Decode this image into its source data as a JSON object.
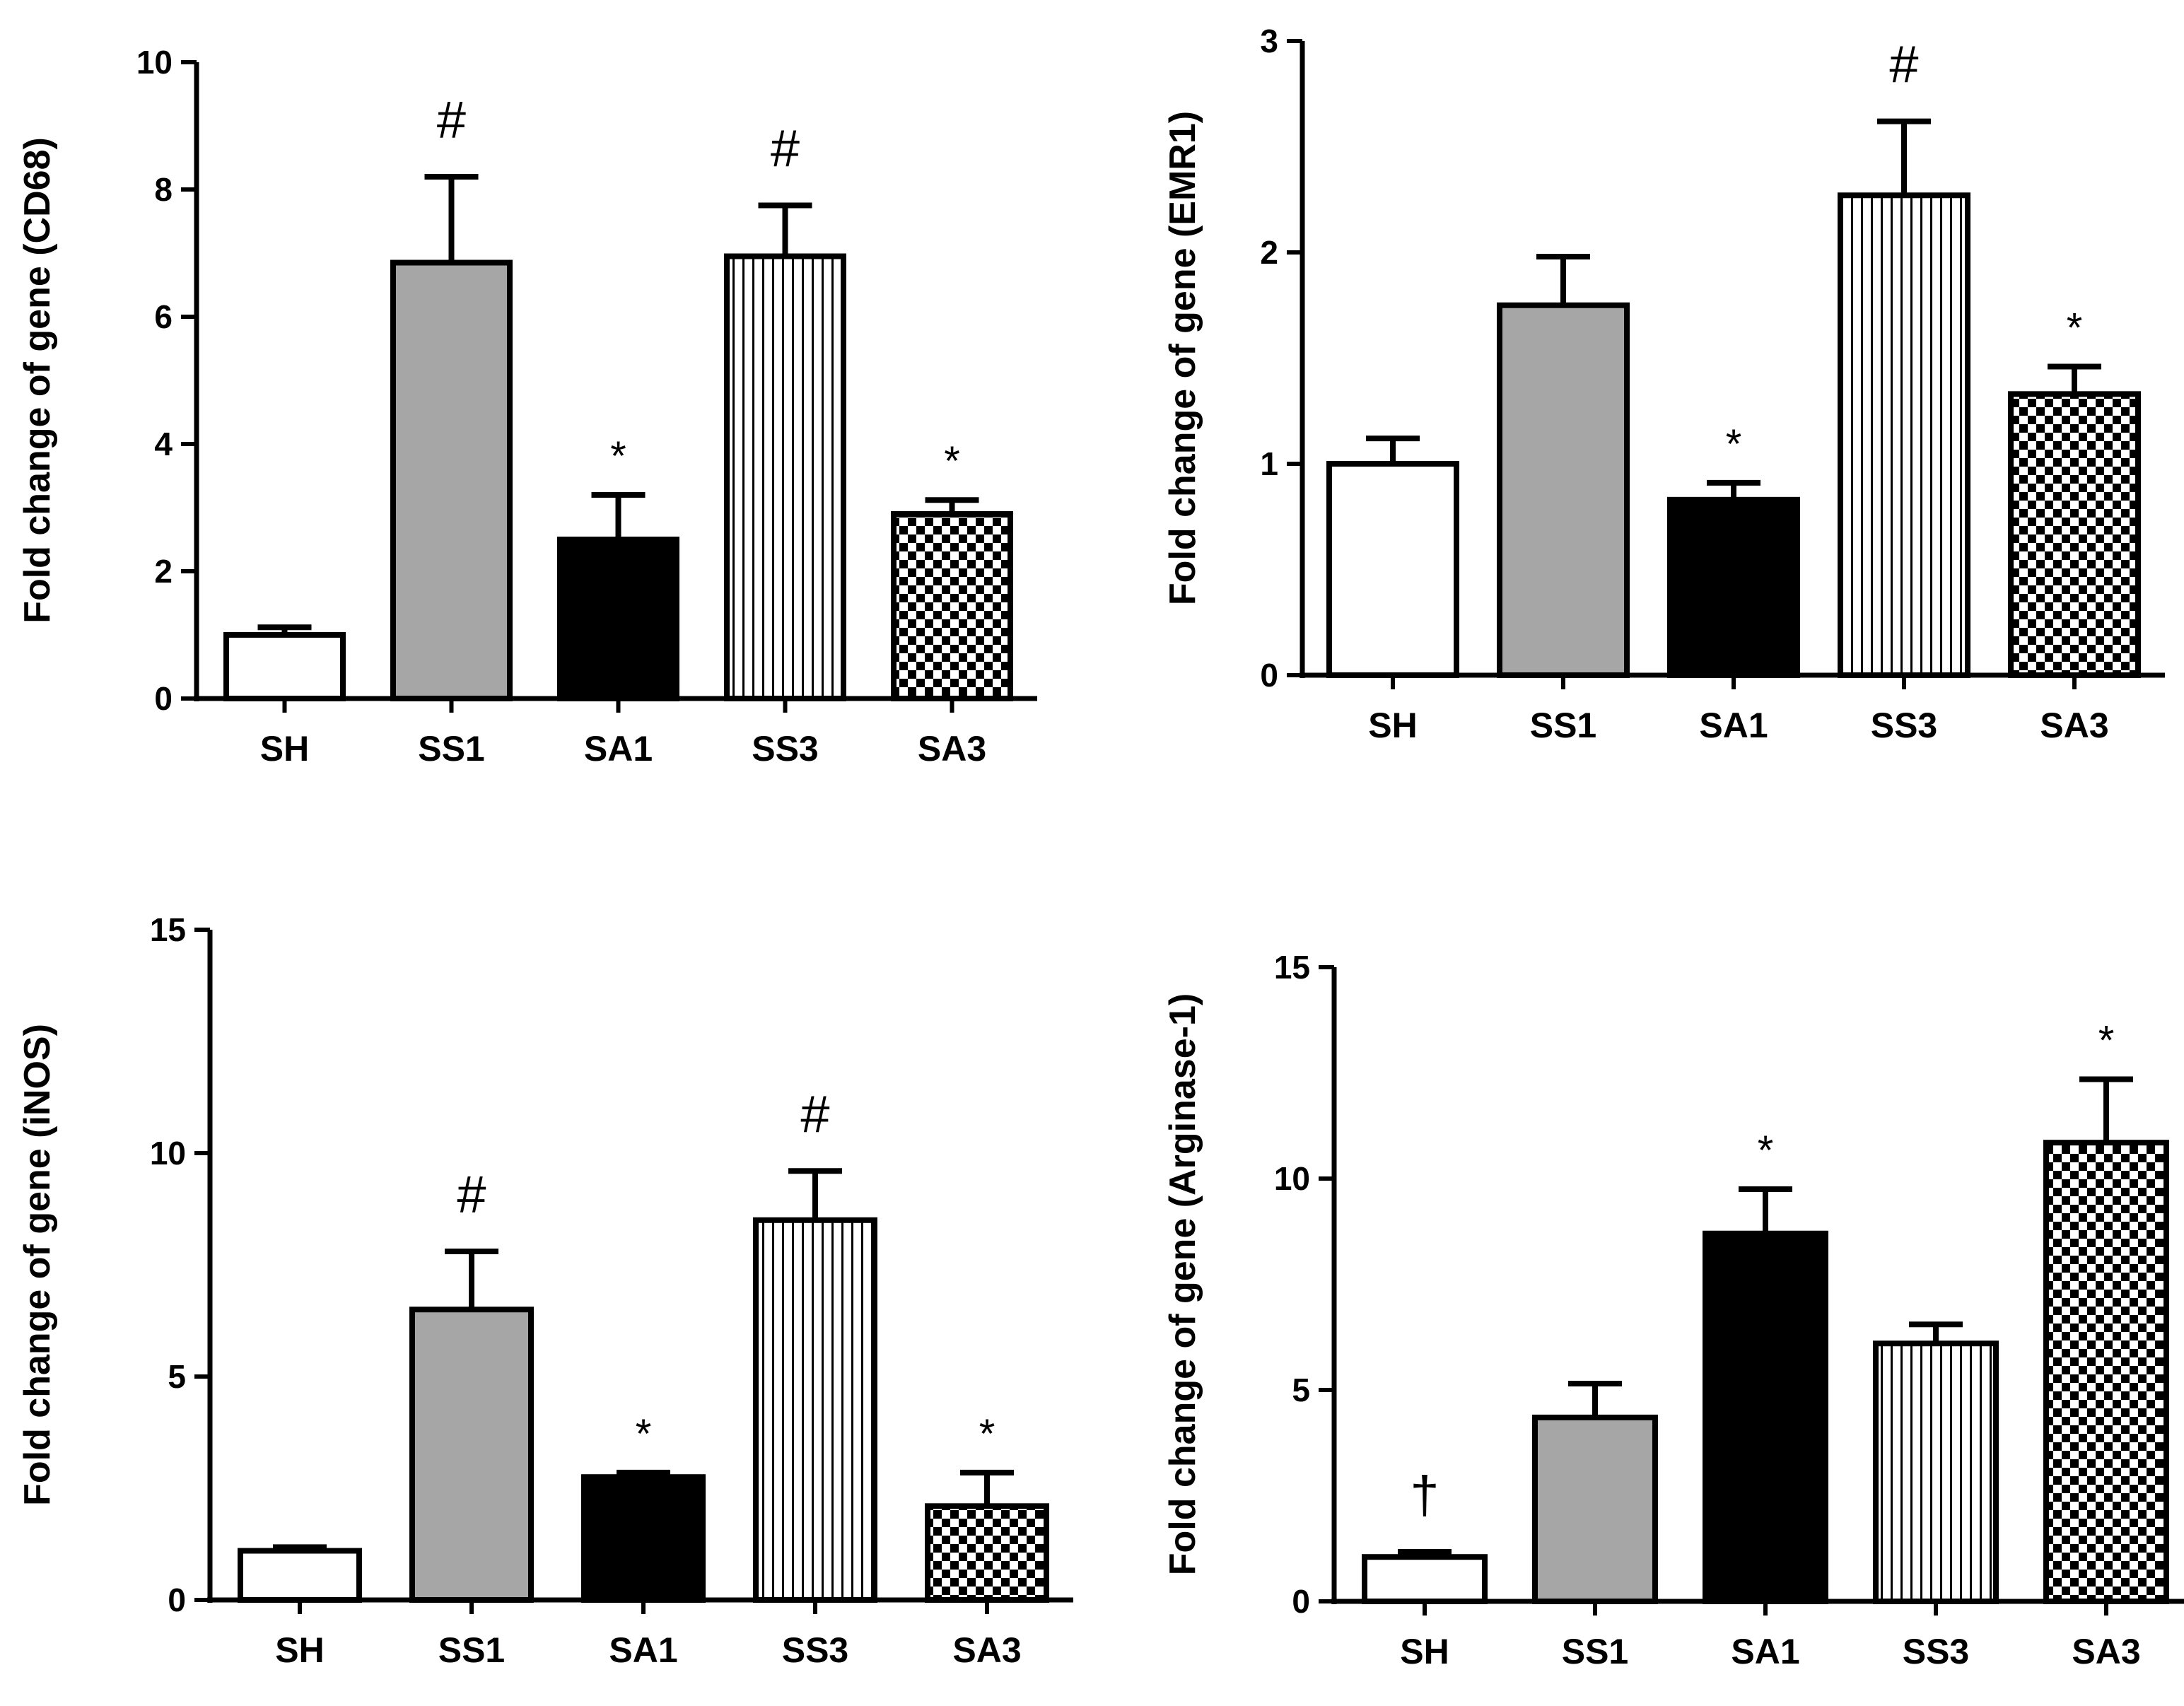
{
  "chart_data": [
    {
      "type": "bar",
      "categories": [
        "SH",
        "SS1",
        "SA1",
        "SS3",
        "SA3"
      ],
      "values": [
        1.0,
        6.85,
        2.5,
        6.95,
        2.9
      ],
      "errors": [
        0.12,
        1.35,
        0.7,
        0.8,
        0.22
      ],
      "annotations": [
        "",
        "#",
        "*",
        "#",
        "*"
      ],
      "ylabel": "Fold change of gene (CD68)",
      "ylim": [
        0,
        10
      ],
      "yticks": [
        0,
        2,
        4,
        6,
        8,
        10
      ],
      "ytick_labels": [
        "0",
        "2",
        "4",
        "6",
        "8",
        "10"
      ]
    },
    {
      "type": "bar",
      "categories": [
        "SH",
        "SS1",
        "SA1",
        "SS3",
        "SA3"
      ],
      "values": [
        1.0,
        1.75,
        0.83,
        2.27,
        1.33
      ],
      "errors": [
        0.12,
        0.23,
        0.08,
        0.35,
        0.13
      ],
      "annotations": [
        "",
        "",
        "*",
        "#",
        "*"
      ],
      "ylabel": "Fold change of gene (EMR1)",
      "ylim": [
        0,
        3
      ],
      "yticks": [
        0,
        1,
        2,
        3
      ],
      "ytick_labels": [
        "0",
        "1",
        "2",
        "3"
      ]
    },
    {
      "type": "bar",
      "categories": [
        "SH",
        "SS1",
        "SA1",
        "SS3",
        "SA3"
      ],
      "values": [
        1.1,
        6.5,
        2.75,
        8.5,
        2.1
      ],
      "errors": [
        0.08,
        1.3,
        0.1,
        1.1,
        0.75
      ],
      "annotations": [
        "",
        "#",
        "*",
        "#",
        "*"
      ],
      "ylabel": "Fold change of gene (iNOS)",
      "ylim": [
        0,
        15
      ],
      "yticks": [
        0,
        5,
        10,
        15
      ],
      "ytick_labels": [
        "0",
        "5",
        "10",
        "15"
      ]
    },
    {
      "type": "bar",
      "categories": [
        "SH",
        "SS1",
        "SA1",
        "SS3",
        "SA3"
      ],
      "values": [
        1.05,
        4.35,
        8.7,
        6.1,
        10.85
      ],
      "errors": [
        0.12,
        0.8,
        1.05,
        0.45,
        1.5
      ],
      "annotations": [
        "†",
        "",
        "*",
        "",
        "*"
      ],
      "ylabel": "Fold change of gene (Arginase-1)",
      "ylim": [
        0,
        15
      ],
      "yticks": [
        0,
        5,
        10,
        15
      ],
      "ytick_labels": [
        "0",
        "5",
        "10",
        "15"
      ]
    }
  ],
  "bar_styles": [
    "white",
    "gray",
    "black",
    "vstripes",
    "checker"
  ],
  "colors": {
    "gray": "#a6a6a6",
    "black": "#000000",
    "white": "#ffffff"
  }
}
